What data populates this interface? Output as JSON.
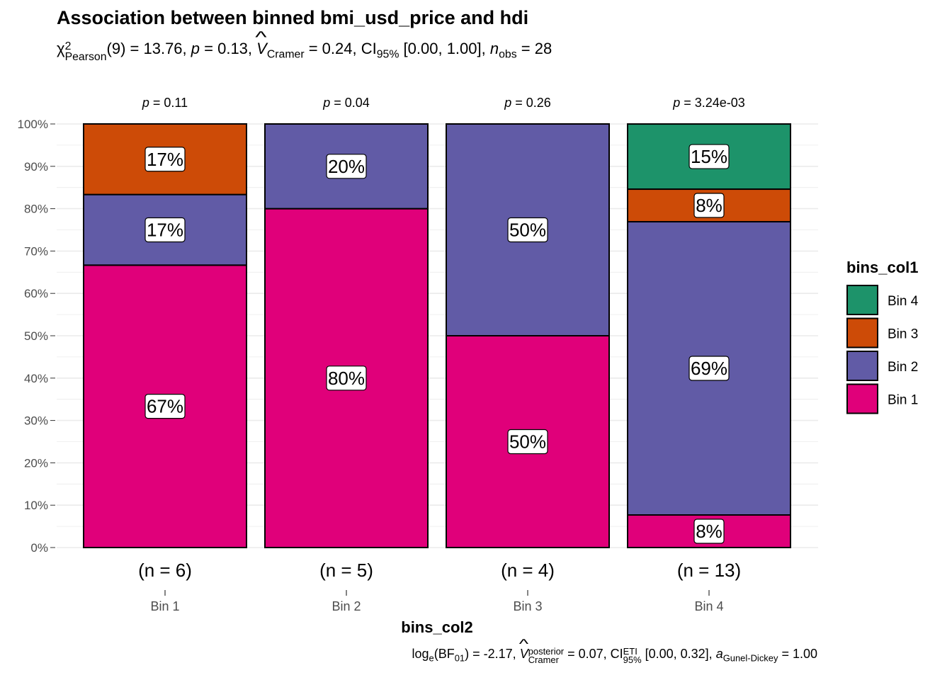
{
  "title": "Association between binned bmi_usd_price and hdi",
  "subtitle": {
    "chi_symbol": "χ",
    "chi_sup": "2",
    "chi_sub": "Pearson",
    "df": "(9) = 13.76, ",
    "p_symbol": "p",
    "p_value": " = 0.13, ",
    "v_symbol": "V",
    "v_sub": "Cramer",
    "v_value": " = 0.24, CI",
    "ci_sub": "95%",
    "ci_value": " [0.00, 1.00], ",
    "n_symbol": "n",
    "n_sub": "obs",
    "n_value": " = 28"
  },
  "caption": {
    "log_prefix": "log",
    "log_sub": "e",
    "bf_open": "(BF",
    "bf_sub": "01",
    "bf_close": ") = -2.17, ",
    "v_symbol": "V",
    "v_sup": "posterior",
    "v_sub": "Cramer",
    "v_value": " = 0.07, CI",
    "ci_sup": "ETI",
    "ci_sub": "95%",
    "ci_value": " [0.00, 0.32], ",
    "a_symbol": "a",
    "a_sub": "Gunel-Dickey",
    "a_value": " = 1.00"
  },
  "chart_data": {
    "type": "bar",
    "stacked": true,
    "percent": true,
    "xlabel": "bins_col2",
    "legend_title": "bins_col1",
    "legend_position": "right",
    "ylim": [
      0,
      100
    ],
    "y_ticks": [
      "0%",
      "10%",
      "20%",
      "30%",
      "40%",
      "50%",
      "60%",
      "70%",
      "80%",
      "90%",
      "100%"
    ],
    "categories": [
      "Bin 1",
      "Bin 2",
      "Bin 3",
      "Bin 4"
    ],
    "counts_labels": [
      "(n = 6)",
      "(n = 5)",
      "(n = 4)",
      "(n = 13)"
    ],
    "p_labels": [
      "0.11",
      "0.04",
      "0.26",
      "3.24e-03"
    ],
    "p_prefix": "p",
    "series": [
      {
        "name": "Bin 1",
        "color": "#E7298A",
        "values": [
          66.67,
          80,
          50,
          7.69
        ],
        "labels": [
          "67%",
          "80%",
          "50%",
          "8%"
        ]
      },
      {
        "name": "Bin 2",
        "color": "#6159A5",
        "values": [
          16.67,
          20,
          50,
          69.23
        ],
        "labels": [
          "17%",
          "20%",
          "50%",
          "69%"
        ]
      },
      {
        "name": "Bin 3",
        "color": "#D95F02",
        "values": [
          16.67,
          0,
          0,
          7.69
        ],
        "labels": [
          "17%",
          "",
          "",
          "8%"
        ]
      },
      {
        "name": "Bin 4",
        "color": "#1B9E77",
        "values": [
          0,
          0,
          0,
          15.38
        ],
        "labels": [
          "",
          "",
          "",
          "15%"
        ]
      }
    ],
    "legend_order": [
      "Bin 4",
      "Bin 3",
      "Bin 2",
      "Bin 1"
    ],
    "grid": true
  },
  "colors": {
    "bin1": "#E0007A",
    "bin2": "#615BA6",
    "bin3": "#CD4B07",
    "bin4": "#1D936A"
  }
}
